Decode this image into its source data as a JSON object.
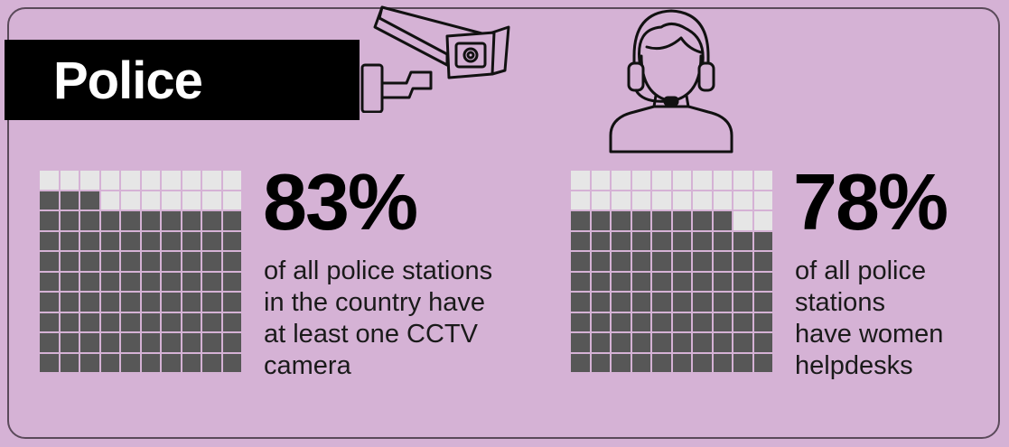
{
  "title": "Police",
  "colors": {
    "background": "#d5b2d5",
    "filled": "#575757",
    "empty": "#e6e6e6",
    "title_bg": "#000000"
  },
  "icons": {
    "left": "cctv-camera-icon",
    "right": "headset-operator-icon"
  },
  "chart_data": [
    {
      "type": "waffle",
      "grid": [
        10,
        10
      ],
      "value_percent": 83,
      "label": "83%",
      "caption_lines": [
        "of all police stations",
        "in the country have",
        "at least one CCTV",
        "camera"
      ]
    },
    {
      "type": "waffle",
      "grid": [
        10,
        10
      ],
      "value_percent": 78,
      "label": "78%",
      "caption_lines": [
        "of all police",
        "stations",
        "have women",
        "helpdesks"
      ]
    }
  ]
}
